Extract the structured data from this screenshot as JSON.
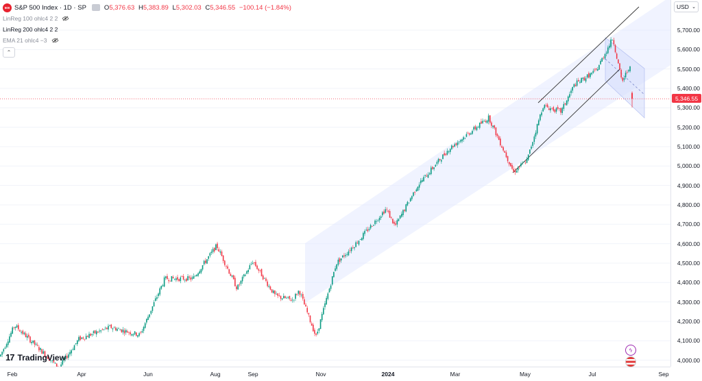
{
  "symbol": {
    "icon_text": "500",
    "title": "S&P 500 Index · 1D · SP"
  },
  "ohlc": {
    "o_label": "O",
    "o": "5,376.63",
    "h_label": "H",
    "h": "5,383.89",
    "l_label": "L",
    "l": "5,302.03",
    "c_label": "C",
    "c": "5,346.55",
    "change": "−100.14 (−1.84%)"
  },
  "indicators": [
    {
      "label": "LinReg 100 ohlc4 2 2",
      "hidden": true
    },
    {
      "label": "LinReg 200 ohlc4 2 2",
      "hidden": false
    },
    {
      "label": "EMA 21 ohlc4 −3",
      "hidden": true
    }
  ],
  "currency": "USD",
  "last_price": "5,346.55",
  "price_ticks": [
    "5,700.00",
    "5,600.00",
    "5,500.00",
    "5,400.00",
    "5,300.00",
    "5,200.00",
    "5,100.00",
    "5,000.00",
    "4,900.00",
    "4,800.00",
    "4,700.00",
    "4,600.00",
    "4,500.00",
    "4,400.00",
    "4,300.00",
    "4,200.00",
    "4,100.00",
    "4,000.00"
  ],
  "time_ticks": [
    {
      "label": "Feb",
      "year": false
    },
    {
      "label": "Apr",
      "year": false
    },
    {
      "label": "Jun",
      "year": false
    },
    {
      "label": "Aug",
      "year": false
    },
    {
      "label": "Sep",
      "year": false
    },
    {
      "label": "Nov",
      "year": false
    },
    {
      "label": "2024",
      "year": true
    },
    {
      "label": "Mar",
      "year": false
    },
    {
      "label": "May",
      "year": false
    },
    {
      "label": "Jul",
      "year": false
    },
    {
      "label": "Sep",
      "year": false
    }
  ],
  "brand": "TradingView",
  "colors": {
    "up": "#089981",
    "down": "#f23645",
    "channel": "#dbe4ff",
    "grid": "#f0f3fa"
  },
  "chart_data": {
    "type": "candlestick",
    "x_range": [
      "2023-01-20",
      "2024-09-05"
    ],
    "ylim": [
      3970,
      5800
    ],
    "close_path": [
      [
        "2023-01-20",
        4020
      ],
      [
        "2023-02-02",
        4180
      ],
      [
        "2023-02-20",
        4080
      ],
      [
        "2023-03-13",
        3960
      ],
      [
        "2023-03-31",
        4110
      ],
      [
        "2023-04-28",
        4170
      ],
      [
        "2023-05-24",
        4130
      ],
      [
        "2023-06-15",
        4420
      ],
      [
        "2023-07-10",
        4420
      ],
      [
        "2023-07-31",
        4590
      ],
      [
        "2023-08-18",
        4370
      ],
      [
        "2023-09-01",
        4510
      ],
      [
        "2023-09-21",
        4330
      ],
      [
        "2023-10-06",
        4310
      ],
      [
        "2023-10-12",
        4360
      ],
      [
        "2023-10-27",
        4120
      ],
      [
        "2023-11-14",
        4500
      ],
      [
        "2023-12-01",
        4600
      ],
      [
        "2023-12-28",
        4780
      ],
      [
        "2024-01-05",
        4690
      ],
      [
        "2024-01-25",
        4900
      ],
      [
        "2024-02-22",
        5090
      ],
      [
        "2024-03-28",
        5250
      ],
      [
        "2024-04-19",
        4970
      ],
      [
        "2024-05-01",
        5030
      ],
      [
        "2024-05-15",
        5310
      ],
      [
        "2024-05-31",
        5280
      ],
      [
        "2024-06-12",
        5420
      ],
      [
        "2024-07-01",
        5490
      ],
      [
        "2024-07-16",
        5660
      ],
      [
        "2024-07-24",
        5430
      ],
      [
        "2024-07-31",
        5520
      ],
      [
        "2024-08-02",
        5346.55
      ]
    ],
    "last": {
      "open": 5376.63,
      "high": 5383.89,
      "low": 5302.03,
      "close": 5346.55
    }
  }
}
